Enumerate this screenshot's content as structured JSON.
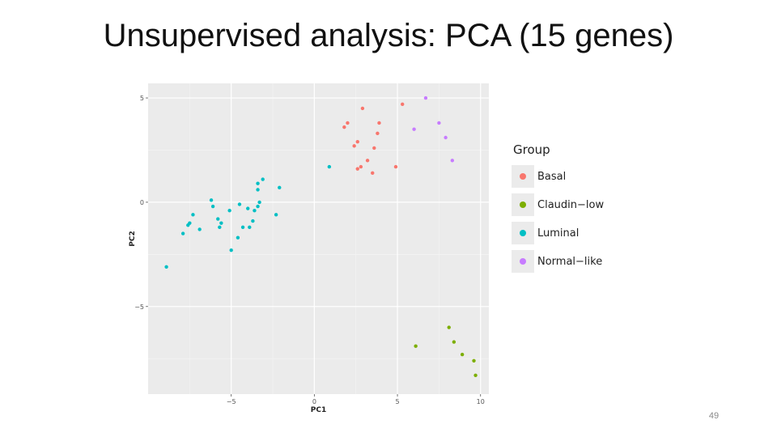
{
  "slide": {
    "title": "Unsupervised analysis: PCA (15 genes)",
    "page_number": "49"
  },
  "chart_data": {
    "type": "scatter",
    "title": "",
    "xlabel": "PC1",
    "ylabel": "PC2",
    "xlim": [
      -10,
      10.5
    ],
    "ylim": [
      -9.2,
      5.7
    ],
    "xticks": [
      -5,
      0,
      5,
      10
    ],
    "yticks": [
      -5,
      0,
      5
    ],
    "grid": true,
    "legend": {
      "title": "Group",
      "position": "right"
    },
    "series": [
      {
        "name": "Basal",
        "color": "#F8766D",
        "points": [
          [
            2.9,
            4.5
          ],
          [
            5.3,
            4.7
          ],
          [
            2.0,
            3.8
          ],
          [
            1.8,
            3.6
          ],
          [
            3.9,
            3.8
          ],
          [
            3.8,
            3.3
          ],
          [
            2.6,
            2.9
          ],
          [
            2.4,
            2.7
          ],
          [
            3.6,
            2.6
          ],
          [
            3.2,
            2.0
          ],
          [
            2.6,
            1.6
          ],
          [
            2.8,
            1.7
          ],
          [
            3.5,
            1.4
          ],
          [
            4.9,
            1.7
          ]
        ]
      },
      {
        "name": "Claudin−low",
        "color": "#7CAE00",
        "points": [
          [
            8.1,
            -6.0
          ],
          [
            8.4,
            -6.7
          ],
          [
            6.1,
            -6.9
          ],
          [
            8.9,
            -7.3
          ],
          [
            9.6,
            -7.6
          ],
          [
            9.7,
            -8.3
          ]
        ]
      },
      {
        "name": "Luminal",
        "color": "#00BFC4",
        "points": [
          [
            0.9,
            1.7
          ],
          [
            -3.1,
            1.1
          ],
          [
            -3.4,
            0.9
          ],
          [
            -3.4,
            0.6
          ],
          [
            -2.1,
            0.7
          ],
          [
            -6.2,
            0.1
          ],
          [
            -6.1,
            -0.2
          ],
          [
            -4.5,
            -0.1
          ],
          [
            -4.0,
            -0.3
          ],
          [
            -3.6,
            -0.4
          ],
          [
            -3.4,
            -0.2
          ],
          [
            -3.3,
            0.0
          ],
          [
            -5.1,
            -0.4
          ],
          [
            -2.3,
            -0.6
          ],
          [
            -7.3,
            -0.6
          ],
          [
            -5.8,
            -0.8
          ],
          [
            -3.7,
            -0.9
          ],
          [
            -7.6,
            -1.1
          ],
          [
            -7.5,
            -1.0
          ],
          [
            -5.6,
            -1.0
          ],
          [
            -5.7,
            -1.2
          ],
          [
            -4.3,
            -1.2
          ],
          [
            -3.9,
            -1.2
          ],
          [
            -6.9,
            -1.3
          ],
          [
            -7.9,
            -1.5
          ],
          [
            -4.6,
            -1.7
          ],
          [
            -5.0,
            -2.3
          ],
          [
            -8.9,
            -3.1
          ]
        ]
      },
      {
        "name": "Normal−like",
        "color": "#C77CFF",
        "points": [
          [
            6.7,
            5.0
          ],
          [
            7.5,
            3.8
          ],
          [
            6.0,
            3.5
          ],
          [
            7.9,
            3.1
          ],
          [
            8.3,
            2.0
          ]
        ]
      }
    ]
  }
}
